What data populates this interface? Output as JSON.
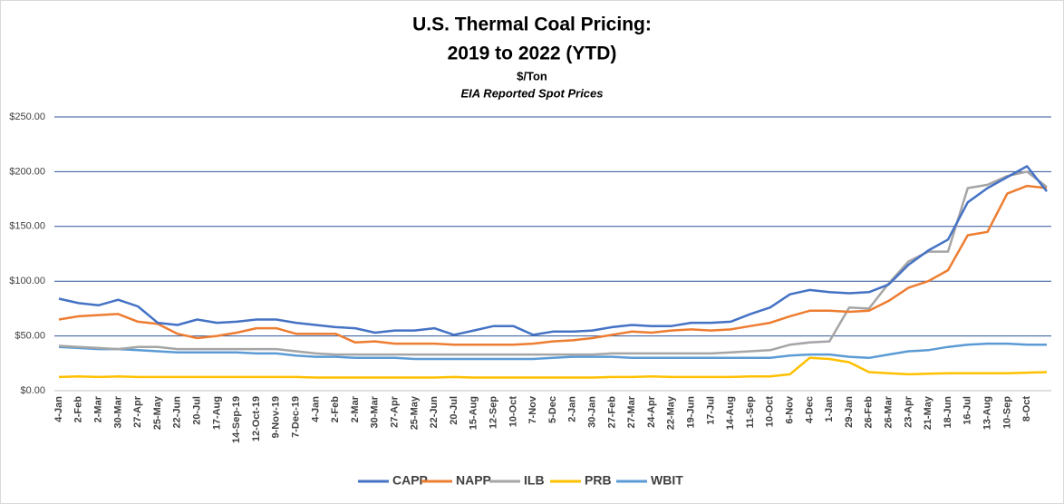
{
  "chart_data": {
    "type": "line",
    "title": [
      "U.S. Thermal Coal Pricing:",
      "2019 to 2022 (YTD)"
    ],
    "subtitle": "$/Ton",
    "annotation": "EIA Reported Spot Prices",
    "categories": [
      "4-Jan",
      "2-Feb",
      "2-Mar",
      "30-Mar",
      "27-Apr",
      "25-May",
      "22-Jun",
      "20-Jul",
      "17-Aug",
      "14-Sep-19",
      "12-Oct-19",
      "9-Nov-19",
      "7-Dec-19",
      "4-Jan",
      "2-Feb",
      "2-Mar",
      "30-Mar",
      "27-Apr",
      "25-May",
      "22-Jun",
      "20-Jul",
      "15-Aug",
      "12-Sep",
      "10-Oct",
      "7-Nov",
      "5-Dec",
      "2-Jan",
      "30-Jan",
      "27-Feb",
      "27-Mar",
      "24-Apr",
      "22-May",
      "19-Jun",
      "17-Jul",
      "14-Aug",
      "11-Sep",
      "10-Oct",
      "6-Nov",
      "4-Dec",
      "1-Jan",
      "29-Jan",
      "26-Feb",
      "26-Mar",
      "23-Apr",
      "21-May",
      "18-Jun",
      "16-Jul",
      "13-Aug",
      "10-Sep",
      "8-Oct",
      null
    ],
    "series": [
      {
        "name": "CAPP",
        "color": "#4472c4",
        "values": [
          84,
          80,
          78,
          83,
          77,
          62,
          60,
          65,
          62,
          63,
          65,
          65,
          62,
          60,
          58,
          57,
          53,
          55,
          55,
          57,
          51,
          55,
          59,
          59,
          51,
          54,
          54,
          55,
          58,
          60,
          59,
          59,
          62,
          62,
          63,
          70,
          76,
          88,
          92,
          90,
          89,
          90,
          97,
          115,
          128,
          138,
          172,
          185,
          195,
          205,
          182
        ]
      },
      {
        "name": "NAPP",
        "color": "#ed7d31",
        "values": [
          65,
          68,
          69,
          70,
          63,
          61,
          52,
          48,
          50,
          53,
          57,
          57,
          52,
          52,
          52,
          44,
          45,
          43,
          43,
          43,
          42,
          42,
          42,
          42,
          43,
          45,
          46,
          48,
          51,
          54,
          53,
          55,
          56,
          55,
          56,
          59,
          62,
          68,
          73,
          73,
          72,
          73,
          82,
          94,
          100,
          110,
          142,
          145,
          180,
          187,
          185
        ]
      },
      {
        "name": "ILB",
        "color": "#a5a5a5",
        "values": [
          41,
          40,
          39,
          38,
          40,
          40,
          38,
          38,
          38,
          38,
          38,
          38,
          36,
          34,
          33,
          33,
          33,
          33,
          33,
          33,
          33,
          33,
          33,
          33,
          33,
          33,
          33,
          33,
          34,
          34,
          34,
          34,
          34,
          34,
          35,
          36,
          37,
          42,
          44,
          45,
          76,
          75,
          98,
          118,
          127,
          127,
          185,
          188,
          196,
          200,
          186
        ]
      },
      {
        "name": "PRB",
        "color": "#ffc000",
        "values": [
          12.5,
          13,
          12.5,
          13,
          12.5,
          12.5,
          12.5,
          12.5,
          12.5,
          12.5,
          12.5,
          12.5,
          12.5,
          12,
          12,
          12,
          12,
          12,
          12,
          12,
          12.5,
          12,
          12,
          12,
          12,
          12,
          12,
          12,
          12.5,
          12.5,
          13,
          12.5,
          12.5,
          12.5,
          12.5,
          13,
          13,
          15,
          30,
          29,
          26,
          17,
          16,
          15,
          15.5,
          16,
          16,
          16,
          16,
          16.5,
          17
        ]
      },
      {
        "name": "WBIT",
        "color": "#5b9bd5",
        "values": [
          40,
          39,
          38,
          38,
          37,
          36,
          35,
          35,
          35,
          35,
          34,
          34,
          32,
          31,
          31,
          30,
          30,
          30,
          29,
          29,
          29,
          29,
          29,
          29,
          29,
          30,
          31,
          31,
          31,
          30,
          30,
          30,
          30,
          30,
          30,
          30,
          30,
          32,
          33,
          33,
          31,
          30,
          33,
          36,
          37,
          40,
          42,
          43,
          43,
          42,
          42
        ]
      }
    ],
    "ylim": [
      0,
      250
    ],
    "yticks": [
      {
        "value": 0,
        "label": "$0.00"
      },
      {
        "value": 50,
        "label": "$50.00"
      },
      {
        "value": 100,
        "label": "$100.00"
      },
      {
        "value": 150,
        "label": "$150.00"
      },
      {
        "value": 200,
        "label": "$200.00"
      },
      {
        "value": 250,
        "label": "$250.00"
      }
    ],
    "grid": true,
    "legend": "bottom"
  }
}
